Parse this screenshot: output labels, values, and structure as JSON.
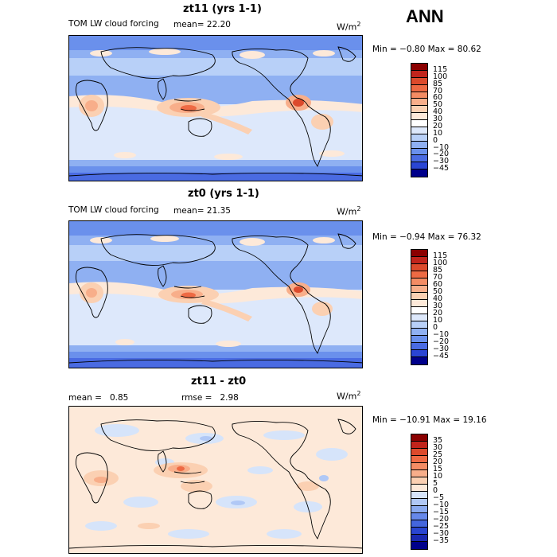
{
  "season": "ANN",
  "panels": [
    {
      "title": "zt11 (yrs 1-1)",
      "field": "TOM LW cloud forcing",
      "stat_left_label": "mean=",
      "stat_left_value": "22.20",
      "stat_right_label": "",
      "stat_right_value": "",
      "units": "W/m",
      "units_sup": "2",
      "minmax": "Min =  −0.80  Max =  80.62",
      "colorbar": {
        "labels": [
          "115",
          "100",
          "85",
          "70",
          "60",
          "50",
          "40",
          "30",
          "20",
          "10",
          "0",
          "−10",
          "−20",
          "−30",
          "−45"
        ],
        "colors": [
          "#8b0000",
          "#c1241c",
          "#dc4a2c",
          "#ee6a44",
          "#f48c64",
          "#f8ae8a",
          "#fbd0b2",
          "#fde9d9",
          "#ffffff",
          "#dde8fb",
          "#b8d0f8",
          "#8fb0f2",
          "#6a90ec",
          "#4a6be2",
          "#2a45d4",
          "#00008b"
        ]
      }
    },
    {
      "title": "zt0 (yrs 1-1)",
      "field": "TOM LW cloud forcing",
      "stat_left_label": "mean=",
      "stat_left_value": "21.35",
      "stat_right_label": "",
      "stat_right_value": "",
      "units": "W/m",
      "units_sup": "2",
      "minmax": "Min =  −0.94  Max =  76.32",
      "colorbar": {
        "labels": [
          "115",
          "100",
          "85",
          "70",
          "60",
          "50",
          "40",
          "30",
          "20",
          "10",
          "0",
          "−10",
          "−20",
          "−30",
          "−45"
        ],
        "colors": [
          "#8b0000",
          "#c1241c",
          "#dc4a2c",
          "#ee6a44",
          "#f48c64",
          "#f8ae8a",
          "#fbd0b2",
          "#fde9d9",
          "#ffffff",
          "#dde8fb",
          "#b8d0f8",
          "#8fb0f2",
          "#6a90ec",
          "#4a6be2",
          "#2a45d4",
          "#00008b"
        ]
      }
    },
    {
      "title": "zt11 - zt0",
      "field": "",
      "stat_left_label": "mean =",
      "stat_left_value": "0.85",
      "stat_right_label": "rmse =",
      "stat_right_value": "2.98",
      "units": "W/m",
      "units_sup": "2",
      "minmax": "Min = −10.91  Max =  19.16",
      "colorbar": {
        "labels": [
          "35",
          "30",
          "25",
          "20",
          "15",
          "10",
          "5",
          "0",
          "−5",
          "−10",
          "−15",
          "−20",
          "−25",
          "−30",
          "−35"
        ],
        "colors": [
          "#8b0000",
          "#c1241c",
          "#dc4a2c",
          "#ee6a44",
          "#f48c64",
          "#f8ae8a",
          "#fbd0b2",
          "#fde9d9",
          "#d6e4fa",
          "#b0c8f6",
          "#8aaaf0",
          "#6688ea",
          "#4466de",
          "#2a45d0",
          "#1a28b0",
          "#00008b"
        ]
      }
    }
  ]
}
